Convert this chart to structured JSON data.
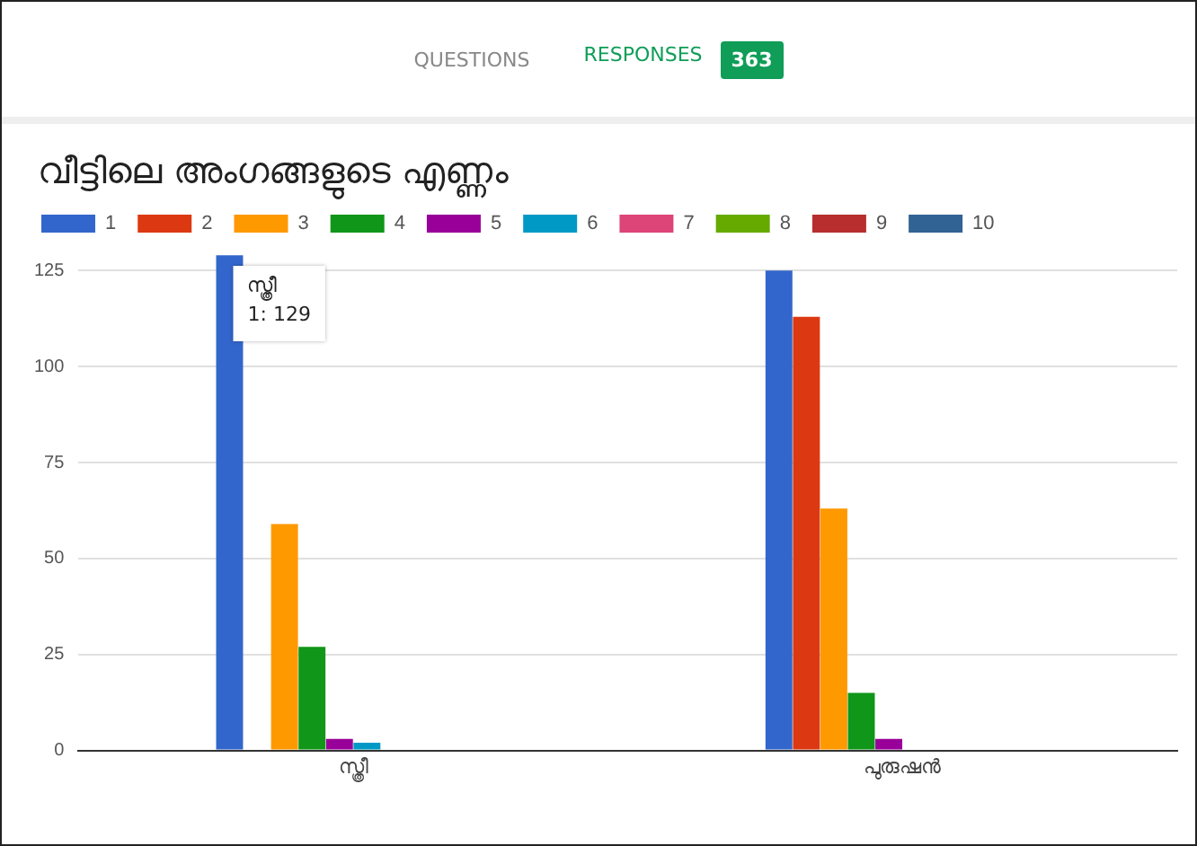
{
  "chart_data": {
    "type": "bar",
    "title": "വീട്ടിലെ അംഗങ്ങളുടെ എണ്ണം",
    "categories": [
      "സ്ത്രീ",
      "പുരുഷൻ"
    ],
    "series": [
      {
        "name": "1",
        "color": "#3366cc",
        "values": [
          129,
          125
        ]
      },
      {
        "name": "2",
        "color": "#dc3912",
        "values": [
          null,
          113
        ]
      },
      {
        "name": "3",
        "color": "#ff9900",
        "values": [
          59,
          63
        ]
      },
      {
        "name": "4",
        "color": "#109618",
        "values": [
          27,
          15
        ]
      },
      {
        "name": "5",
        "color": "#990099",
        "values": [
          3,
          3
        ]
      },
      {
        "name": "6",
        "color": "#0099c6",
        "values": [
          2,
          0
        ]
      },
      {
        "name": "7",
        "color": "#dd4477",
        "values": [
          0,
          0
        ]
      },
      {
        "name": "8",
        "color": "#66aa00",
        "values": [
          0,
          0
        ]
      },
      {
        "name": "9",
        "color": "#b82e2e",
        "values": [
          0,
          0
        ]
      },
      {
        "name": "10",
        "color": "#316395",
        "values": [
          0,
          0
        ]
      }
    ],
    "ylim": [
      0,
      130
    ],
    "yticks": [
      0,
      25,
      50,
      75,
      100,
      125
    ],
    "grid": "y",
    "legend": "top",
    "annotations": [
      "QUESTIONS",
      "RESPONSES",
      "363",
      "സ്ത്രീ\n1: 129"
    ]
  }
}
